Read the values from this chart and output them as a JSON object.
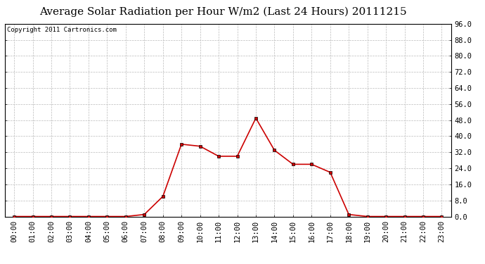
{
  "title": "Average Solar Radiation per Hour W/m2 (Last 24 Hours) 20111215",
  "copyright_text": "Copyright 2011 Cartronics.com",
  "x_labels": [
    "00:00",
    "01:00",
    "02:00",
    "03:00",
    "04:00",
    "05:00",
    "06:00",
    "07:00",
    "08:00",
    "09:00",
    "10:00",
    "11:00",
    "12:00",
    "13:00",
    "14:00",
    "15:00",
    "16:00",
    "17:00",
    "18:00",
    "19:00",
    "20:00",
    "21:00",
    "22:00",
    "23:00"
  ],
  "y_values": [
    0.0,
    0.0,
    0.0,
    0.0,
    0.0,
    0.0,
    0.0,
    1.0,
    10.0,
    36.0,
    35.0,
    30.0,
    30.0,
    49.0,
    33.0,
    26.0,
    26.0,
    22.0,
    1.0,
    0.0,
    0.0,
    0.0,
    0.0,
    0.0
  ],
  "line_color": "#cc0000",
  "marker": "s",
  "marker_color": "#000000",
  "marker_size": 3,
  "background_color": "#ffffff",
  "plot_bg_color": "#ffffff",
  "grid_color": "#bbbbbb",
  "y_min": 0.0,
  "y_max": 96.0,
  "y_ticks": [
    0.0,
    8.0,
    16.0,
    24.0,
    32.0,
    40.0,
    48.0,
    56.0,
    64.0,
    72.0,
    80.0,
    88.0,
    96.0
  ],
  "title_fontsize": 11,
  "copyright_fontsize": 6.5,
  "tick_fontsize": 7.5
}
